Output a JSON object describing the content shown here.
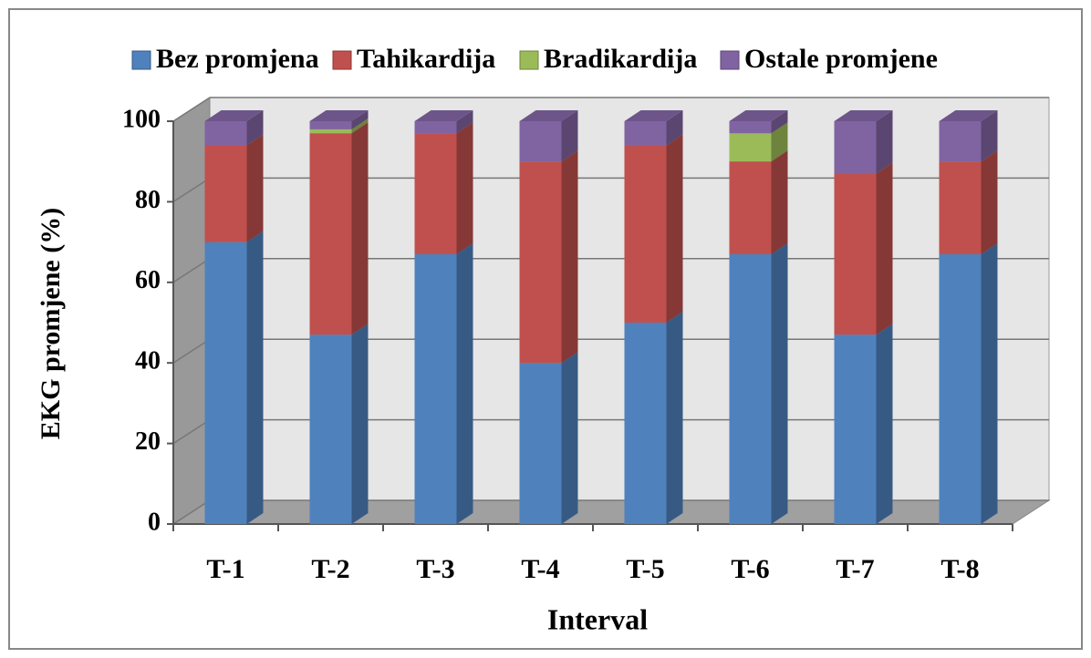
{
  "chart_data": {
    "type": "bar",
    "stacked": true,
    "x_label": "Interval",
    "y_label": "EKG promjene (%)",
    "categories": [
      "T-1",
      "T-2",
      "T-3",
      "T-4",
      "T-5",
      "T-6",
      "T-7",
      "T-8"
    ],
    "series": [
      {
        "name": "Bez promjena",
        "color": "#4f81bd",
        "values": [
          70,
          47,
          67,
          40,
          50,
          67,
          47,
          67
        ]
      },
      {
        "name": "Tahikardija",
        "color": "#c0504d",
        "values": [
          24,
          50,
          30,
          50,
          44,
          23,
          40,
          23
        ]
      },
      {
        "name": "Bradikardija",
        "color": "#9bbb59",
        "values": [
          0,
          1,
          0,
          0,
          0,
          7,
          0,
          0
        ]
      },
      {
        "name": "Ostale promjene",
        "color": "#8064a2",
        "values": [
          6,
          2,
          3,
          10,
          6,
          3,
          13,
          10
        ]
      }
    ],
    "ylim": [
      0,
      100
    ],
    "yticks": [
      0,
      20,
      40,
      60,
      80,
      100
    ],
    "grid": true,
    "legend": "top"
  }
}
